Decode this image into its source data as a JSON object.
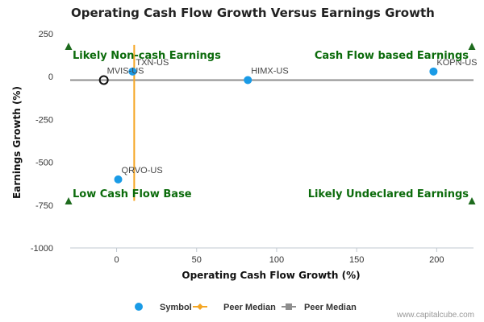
{
  "chart_data": {
    "type": "scatter",
    "title": "Operating Cash Flow Growth Versus Earnings Growth",
    "xlabel": "Operating Cash Flow Growth (%)",
    "ylabel": "Earnings Growth (%)",
    "xlim": [
      -29,
      223
    ],
    "ylim": [
      -1000,
      250
    ],
    "xticks": [
      0,
      50,
      100,
      150,
      200
    ],
    "yticks": [
      250,
      0,
      -250,
      -500,
      -750,
      -1000
    ],
    "grid": false,
    "series": [
      {
        "name": "Symbol",
        "color": "#1a9be6",
        "points": [
          {
            "label": "TXN-US",
            "x": 10,
            "y": 30
          },
          {
            "label": "HIMX-US",
            "x": 82,
            "y": -20
          },
          {
            "label": "KOPN-US",
            "x": 198,
            "y": 30
          },
          {
            "label": "QRVO-US",
            "x": 1,
            "y": -600
          }
        ]
      },
      {
        "name": "",
        "color": "#111111",
        "hollow": true,
        "points": [
          {
            "label": "MVIS-US",
            "x": -8,
            "y": -20
          }
        ]
      }
    ],
    "peer_median": {
      "x": 11,
      "y": -20,
      "x_color": "#f5a623",
      "y_color": "#8e8e8e",
      "x_line_y_range": [
        185,
        -725
      ],
      "y_line_x_range": [
        -29,
        223
      ]
    },
    "quadrants": {
      "top_left": "Likely Non-cash Earnings",
      "top_right": "Cash Flow based Earnings",
      "bottom_left": "Low Cash Flow Base",
      "bottom_right": "Likely Undeclared Earnings"
    },
    "legend": {
      "placement": "bottom-center",
      "items": [
        {
          "label": "Symbol",
          "kind": "dot",
          "color": "#1a9be6"
        },
        {
          "label": "Peer Median",
          "kind": "line-diamond",
          "color": "#f5a623"
        },
        {
          "label": "Peer Median",
          "kind": "line-square",
          "color": "#8e8e8e"
        }
      ]
    },
    "marker_color": "#1e6b1e"
  },
  "credit": "www.capitalcube.com"
}
